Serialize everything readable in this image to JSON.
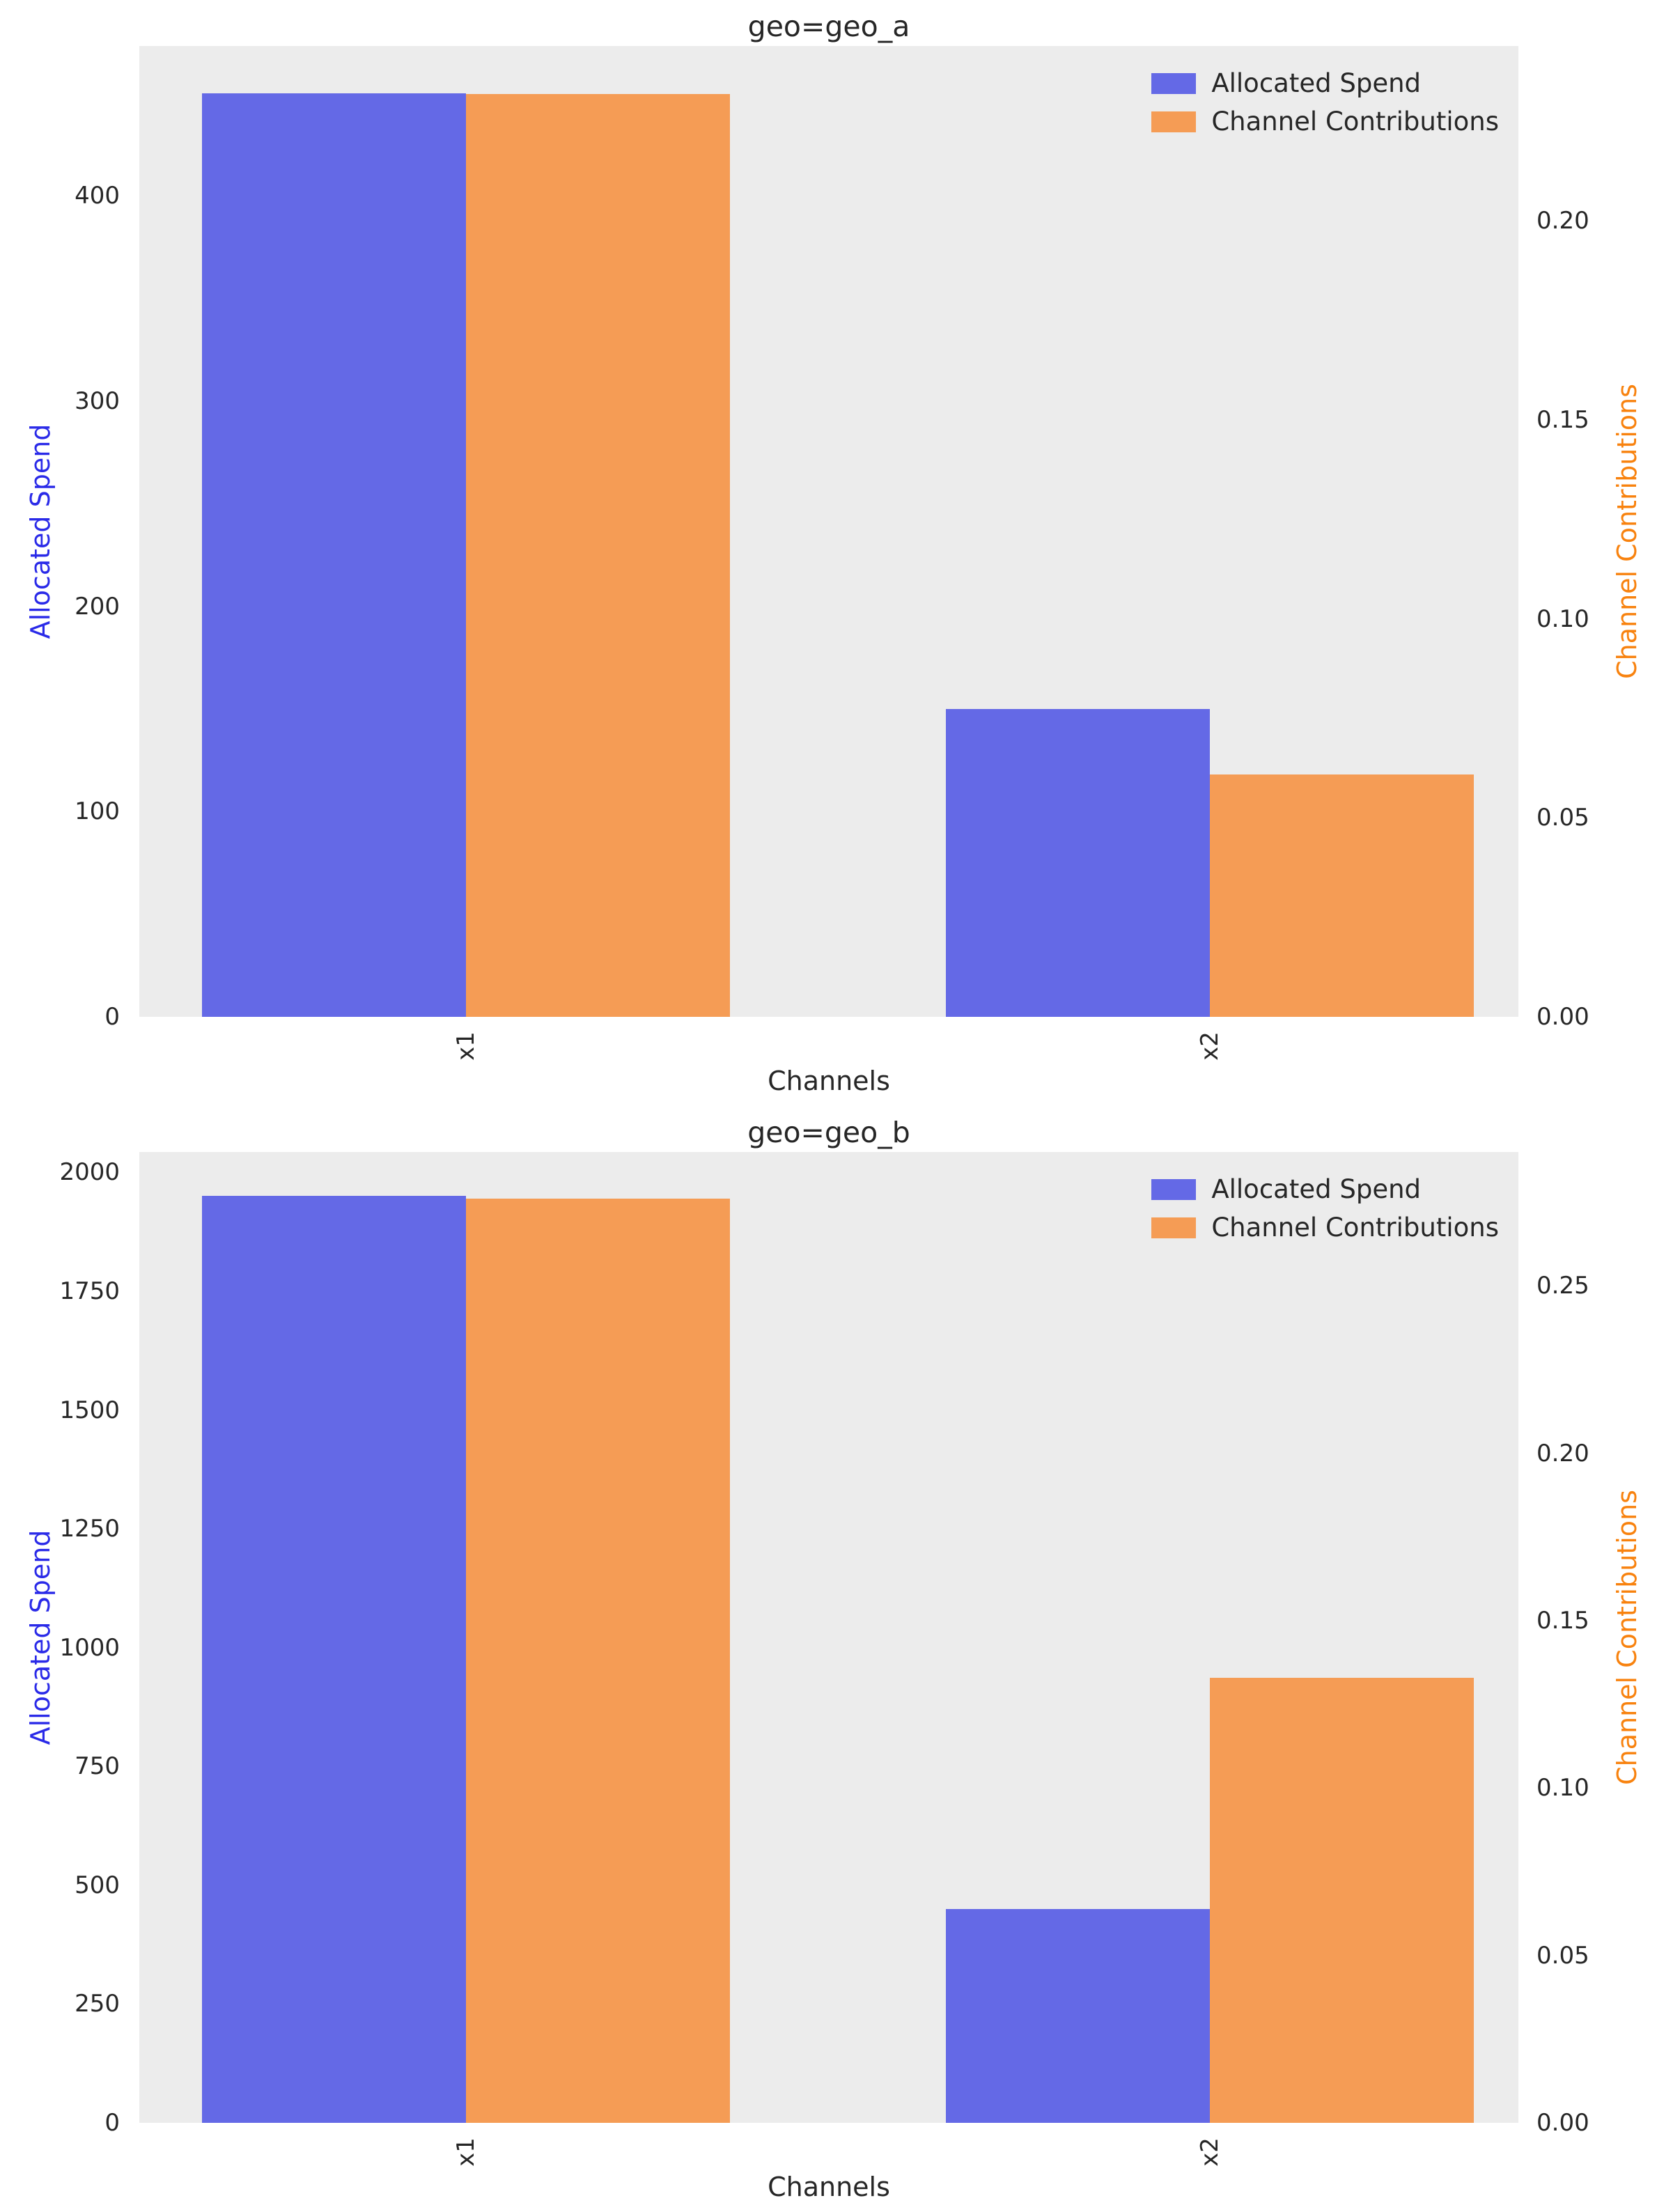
{
  "figure": {
    "background": "#ffffff",
    "axes_background": "#ececec",
    "spend_color": "#6469e6",
    "contribution_color": "#f59c55",
    "spend_label_color": "#2a2ae8",
    "contribution_label_color": "#f8820e"
  },
  "legend": {
    "items": [
      {
        "label": "Allocated Spend",
        "color": "#6469e6"
      },
      {
        "label": "Channel Contributions",
        "color": "#f59c55"
      }
    ]
  },
  "chart_data": [
    {
      "type": "bar",
      "title": "geo=geo_a",
      "xlabel": "Channels",
      "categories": [
        "x1",
        "x2"
      ],
      "grid": false,
      "legend_position": "upper right",
      "left_axis": {
        "label": "Allocated Spend",
        "label_color": "#2a2ae8",
        "ticks": [
          "0",
          "100",
          "200",
          "300",
          "400"
        ],
        "tick_values": [
          0,
          100,
          200,
          300,
          400
        ],
        "range": [
          0,
          473
        ]
      },
      "right_axis": {
        "label": "Channel Contributions",
        "label_color": "#f8820e",
        "ticks": [
          "0.00",
          "0.05",
          "0.10",
          "0.15",
          "0.20"
        ],
        "tick_values": [
          0,
          0.05,
          0.1,
          0.15,
          0.2
        ],
        "range": [
          0,
          0.244
        ]
      },
      "series": [
        {
          "name": "Allocated Spend",
          "axis": "left",
          "color": "#6469e6",
          "values": [
            450,
            150
          ]
        },
        {
          "name": "Channel Contributions",
          "axis": "right",
          "color": "#f59c55",
          "values": [
            0.232,
            0.061
          ]
        }
      ]
    },
    {
      "type": "bar",
      "title": "geo=geo_b",
      "xlabel": "Channels",
      "categories": [
        "x1",
        "x2"
      ],
      "grid": false,
      "legend_position": "upper right",
      "left_axis": {
        "label": "Allocated Spend",
        "label_color": "#2a2ae8",
        "ticks": [
          "0",
          "250",
          "500",
          "750",
          "1000",
          "1250",
          "1500",
          "1750",
          "2000"
        ],
        "tick_values": [
          0,
          250,
          500,
          750,
          1000,
          1250,
          1500,
          1750,
          2000
        ],
        "range": [
          0,
          2043
        ]
      },
      "right_axis": {
        "label": "Channel Contributions",
        "label_color": "#f8820e",
        "ticks": [
          "0.00",
          "0.05",
          "0.10",
          "0.15",
          "0.20",
          "0.25"
        ],
        "tick_values": [
          0,
          0.05,
          0.1,
          0.15,
          0.2,
          0.25
        ],
        "range": [
          0,
          0.29
        ]
      },
      "series": [
        {
          "name": "Allocated Spend",
          "axis": "left",
          "color": "#6469e6",
          "values": [
            1950,
            450
          ]
        },
        {
          "name": "Channel Contributions",
          "axis": "right",
          "color": "#f59c55",
          "values": [
            0.276,
            0.133
          ]
        }
      ]
    }
  ]
}
